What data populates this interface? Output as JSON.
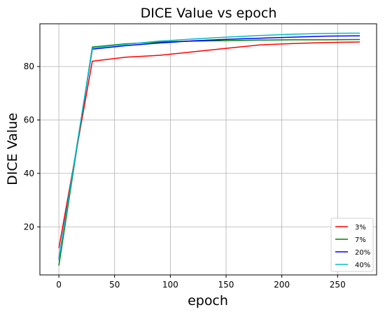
{
  "chart_data": {
    "type": "line",
    "title": "DICE Value vs epoch",
    "xlabel": "epoch",
    "ylabel": "DICE Value",
    "xlim": [
      -17,
      285
    ],
    "ylim": [
      2,
      96
    ],
    "xticks": [
      0,
      50,
      100,
      150,
      200,
      250
    ],
    "yticks": [
      20,
      40,
      60,
      80
    ],
    "grid": true,
    "legend_position": "lower-right",
    "series": [
      {
        "name": "3%",
        "color": "#ff0000",
        "x": [
          0,
          30,
          60,
          90,
          120,
          150,
          180,
          210,
          240,
          270
        ],
        "y": [
          12,
          82,
          83.5,
          84.2,
          85.5,
          86.8,
          88.1,
          88.6,
          89,
          89.2
        ]
      },
      {
        "name": "7%",
        "color": "#008000",
        "x": [
          0,
          30,
          60,
          90,
          120,
          150,
          180,
          210,
          240,
          270
        ],
        "y": [
          5.5,
          87.3,
          88.5,
          89.2,
          89.5,
          89.7,
          89.9,
          90,
          90,
          90.1
        ]
      },
      {
        "name": "20%",
        "color": "#0000ff",
        "x": [
          0,
          30,
          60,
          90,
          120,
          150,
          180,
          210,
          240,
          270
        ],
        "y": [
          8,
          86.5,
          87.8,
          88.8,
          89.6,
          90.2,
          90.6,
          91,
          91.4,
          91.5
        ]
      },
      {
        "name": "40%",
        "color": "#00bfbf",
        "x": [
          0,
          30,
          60,
          90,
          120,
          150,
          180,
          210,
          240,
          270
        ],
        "y": [
          7.5,
          87,
          88.3,
          89.5,
          90.3,
          91,
          91.6,
          92.1,
          92.4,
          92.5
        ]
      }
    ]
  }
}
